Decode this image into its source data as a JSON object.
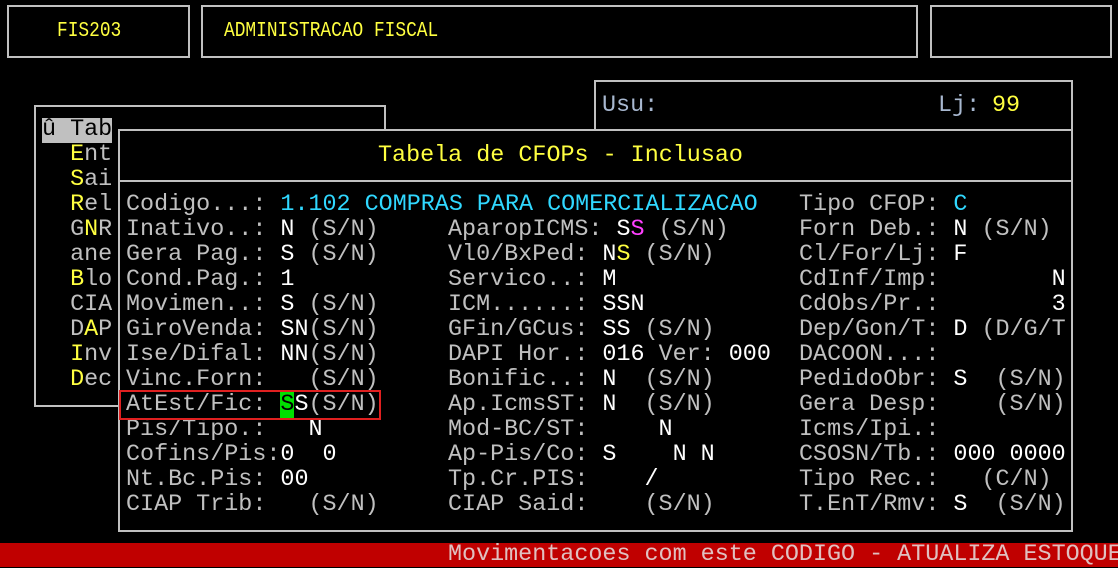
{
  "header": {
    "program_code": "FIS203",
    "title": "ADMINISTRACAO FISCAL",
    "right_box": ""
  },
  "user_panel": {
    "user_label": "Usu:",
    "store_label": "Lj:",
    "store_value": "99"
  },
  "menu": {
    "items": [
      {
        "prefix": "û ",
        "label": "Tab",
        "hotkey_index": -1,
        "selected": true
      },
      {
        "prefix": "  ",
        "label": "Ent",
        "hotkey_index": 0
      },
      {
        "prefix": "  ",
        "label": "Sai",
        "hotkey_index": 0
      },
      {
        "prefix": "  ",
        "label": "Rel",
        "hotkey_index": 0
      },
      {
        "prefix": "  ",
        "label": "GNR",
        "hotkey_index": 1
      },
      {
        "prefix": "  ",
        "label": "ane",
        "hotkey_index": -1
      },
      {
        "prefix": "  ",
        "label": "Blo",
        "hotkey_index": 0
      },
      {
        "prefix": "  ",
        "label": "CIA",
        "hotkey_index": -1
      },
      {
        "prefix": "  ",
        "label": "DAP",
        "hotkey_index": 1
      },
      {
        "prefix": "  ",
        "label": "Inv",
        "hotkey_index": 0
      },
      {
        "prefix": "  ",
        "label": "Dec",
        "hotkey_index": 0
      }
    ]
  },
  "dialog": {
    "title": "Tabela de CFOPs - Inclusao",
    "columns": [
      {
        "start_row": 0,
        "fields": [
          {
            "label": "Codigo...: ",
            "segments": [
              [
                "1.102 COMPRAS PARA COMERCIALIZACAO",
                "c"
              ]
            ]
          },
          {
            "label": "Inativo..: ",
            "segments": [
              [
                "N",
                "v"
              ],
              [
                " (S/N)",
                "l"
              ]
            ]
          },
          {
            "label": "Gera Pag.: ",
            "segments": [
              [
                "S",
                "v"
              ],
              [
                " (S/N)",
                "l"
              ]
            ]
          },
          {
            "label": "Cond.Pag.: ",
            "segments": [
              [
                "1",
                "v"
              ]
            ]
          },
          {
            "label": "Movimen..: ",
            "segments": [
              [
                "S",
                "v"
              ],
              [
                " (S/N)",
                "l"
              ]
            ]
          },
          {
            "label": "GiroVenda: ",
            "segments": [
              [
                "SN",
                "v"
              ],
              [
                "(S/N)",
                "l"
              ]
            ]
          },
          {
            "label": "Ise/Difal: ",
            "segments": [
              [
                "NN",
                "v"
              ],
              [
                "(S/N)",
                "l"
              ]
            ]
          },
          {
            "label": "Vinc.Forn: ",
            "segments": [
              [
                "  (S/N)",
                "l"
              ]
            ]
          },
          {
            "label": "AtEst/Fic: ",
            "segments": [
              [
                "S",
                "g"
              ],
              [
                "S",
                "v"
              ],
              [
                "(S/N)",
                "l"
              ]
            ],
            "focused": true
          },
          {
            "label": "Pis/Tipo.: ",
            "segments": [
              [
                "  N",
                "v"
              ]
            ]
          },
          {
            "label": "Cofins/Pis:",
            "segments": [
              [
                "0  0",
                "v"
              ]
            ]
          },
          {
            "label": "Nt.Bc.Pis: ",
            "segments": [
              [
                "00",
                "v"
              ]
            ]
          },
          {
            "label": "CIAP Trib: ",
            "segments": [
              [
                "  (S/N)",
                "l"
              ]
            ]
          }
        ]
      },
      {
        "start_row": 1,
        "fields": [
          {
            "label": "AparopICMS: ",
            "segments": [
              [
                "S",
                "v"
              ],
              [
                "S",
                "m"
              ],
              [
                " (S/N)",
                "l"
              ]
            ]
          },
          {
            "label": "Vl0/BxPed: ",
            "segments": [
              [
                "N",
                "v"
              ],
              [
                "S",
                "y"
              ],
              [
                " (S/N)",
                "l"
              ]
            ]
          },
          {
            "label": "Servico..: ",
            "segments": [
              [
                "M",
                "v"
              ]
            ]
          },
          {
            "label": "ICM......: ",
            "segments": [
              [
                "SSN",
                "v"
              ]
            ]
          },
          {
            "label": "GFin/GCus: ",
            "segments": [
              [
                "SS",
                "v"
              ],
              [
                " (S/N)",
                "l"
              ]
            ]
          },
          {
            "label": "DAPI Hor.: ",
            "segments": [
              [
                "016",
                "v"
              ],
              [
                " Ver: ",
                "l"
              ],
              [
                "000",
                "v"
              ]
            ]
          },
          {
            "label": "Bonific..: ",
            "segments": [
              [
                "N",
                "v"
              ],
              [
                "  (S/N)",
                "l"
              ]
            ]
          },
          {
            "label": "Ap.IcmsST: ",
            "segments": [
              [
                "N",
                "v"
              ],
              [
                "  (S/N)",
                "l"
              ]
            ]
          },
          {
            "label": "Mod-BC/ST: ",
            "segments": [
              [
                "    N",
                "v"
              ]
            ]
          },
          {
            "label": "Ap-Pis/Co: ",
            "segments": [
              [
                "S    N N",
                "v"
              ]
            ]
          },
          {
            "label": "Tp.Cr.PIS: ",
            "segments": [
              [
                "   /",
                "v"
              ]
            ]
          },
          {
            "label": "CIAP Said: ",
            "segments": [
              [
                "   (S/N)",
                "l"
              ]
            ]
          }
        ]
      },
      {
        "start_row": 0,
        "fields": [
          {
            "label": "Tipo CFOP: ",
            "segments": [
              [
                "C",
                "c"
              ]
            ]
          },
          {
            "label": "Forn Deb.: ",
            "segments": [
              [
                "N",
                "v"
              ],
              [
                " (S/N)",
                "l"
              ]
            ]
          },
          {
            "label": "Cl/For/Lj: ",
            "segments": [
              [
                "F",
                "v"
              ]
            ]
          },
          {
            "label": "CdInf/Imp: ",
            "segments": [
              [
                "       N",
                "v"
              ]
            ]
          },
          {
            "label": "CdObs/Pr.: ",
            "segments": [
              [
                "       3",
                "v"
              ]
            ]
          },
          {
            "label": "Dep/Gon/T: ",
            "segments": [
              [
                "D",
                "v"
              ],
              [
                " (D/G/T",
                "l"
              ]
            ]
          },
          {
            "label": "DACOON...: ",
            "segments": []
          },
          {
            "label": "PedidoObr: ",
            "segments": [
              [
                "S",
                "v"
              ],
              [
                "  (S/N)",
                "l"
              ]
            ]
          },
          {
            "label": "Gera Desp: ",
            "segments": [
              [
                "   (S/N)",
                "l"
              ]
            ]
          },
          {
            "label": "Icms/Ipi.: ",
            "segments": []
          },
          {
            "label": "CSOSN/Tb.: ",
            "segments": [
              [
                "000 0000",
                "v"
              ]
            ]
          },
          {
            "label": "Tipo Rec.: ",
            "segments": [
              [
                "  (C/N)",
                "l"
              ]
            ]
          },
          {
            "label": "T.EnT/Rmv: ",
            "segments": [
              [
                "S",
                "v"
              ],
              [
                "  (S/N)",
                "l"
              ]
            ]
          }
        ]
      }
    ]
  },
  "status_bar": {
    "message": "Movimentacoes com este CODIGO - ATUALIZA ESTOQUE"
  },
  "colors": {
    "status_bar_bg": "#c00000",
    "focus_cursor": "#00e000",
    "highlight_box": "#e02020"
  }
}
